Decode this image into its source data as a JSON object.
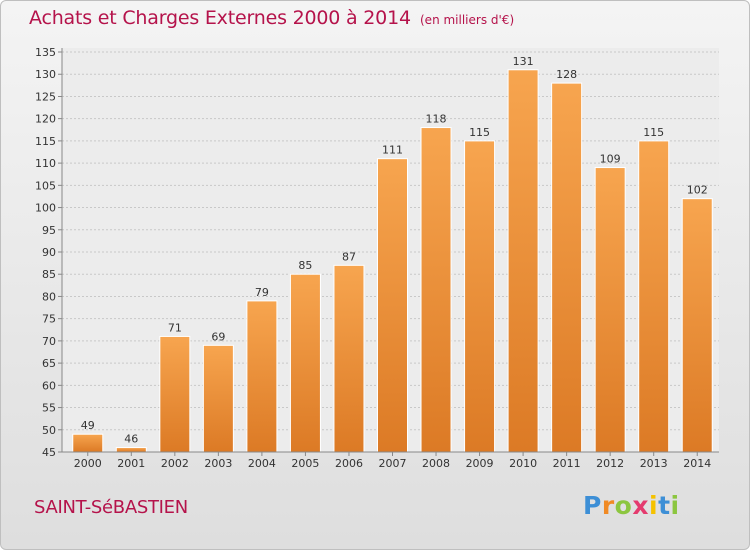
{
  "header": {
    "title": "Achats et Charges Externes 2000 à 2014",
    "unit_note": "(en milliers d'€)"
  },
  "footer": {
    "commune": "SAINT-SéBASTIEN",
    "logo_text": "Proxiti"
  },
  "chart_data": {
    "type": "bar",
    "title": "Achats et Charges Externes 2000 à 2014",
    "subtitle": "(en milliers d'€)",
    "xlabel": "",
    "ylabel": "",
    "categories": [
      "2000",
      "2001",
      "2002",
      "2003",
      "2004",
      "2005",
      "2006",
      "2007",
      "2008",
      "2009",
      "2010",
      "2011",
      "2012",
      "2013",
      "2014"
    ],
    "values": [
      49,
      46,
      71,
      69,
      79,
      85,
      87,
      111,
      118,
      115,
      131,
      128,
      109,
      115,
      102
    ],
    "ylim": [
      45,
      135
    ],
    "yticks": [
      45,
      50,
      55,
      60,
      65,
      70,
      75,
      80,
      85,
      90,
      95,
      100,
      105,
      110,
      115,
      120,
      125,
      130,
      135
    ],
    "grid": true,
    "bar_color_light": "#f7a54f",
    "bar_color_dark": "#dc7a25"
  }
}
